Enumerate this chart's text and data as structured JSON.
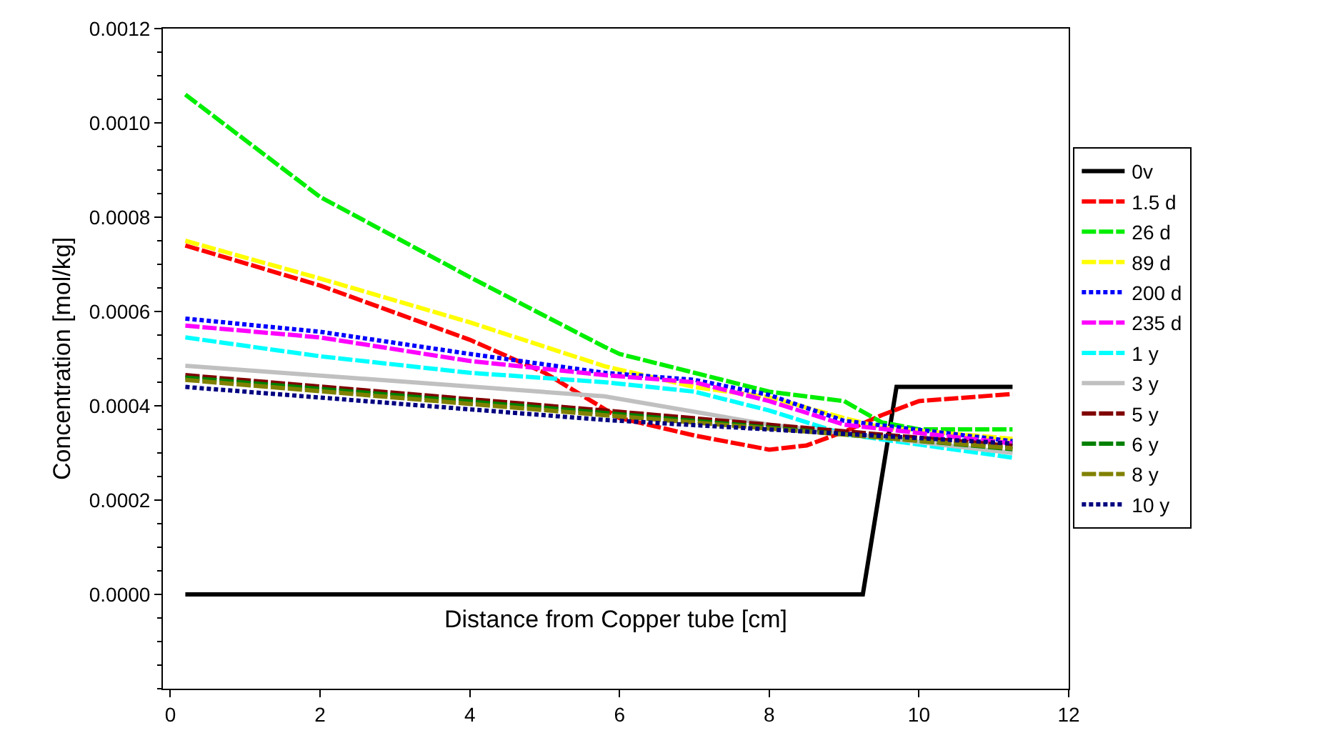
{
  "chart_data": {
    "type": "line",
    "xlabel": "Distance from Copper tube [cm]",
    "ylabel": "Concentration [mol/kg]",
    "xlim": [
      -0.1,
      12
    ],
    "xticks": [
      0,
      2,
      4,
      6,
      8,
      10,
      12
    ],
    "ylim": [
      -0.0002,
      0.0012
    ],
    "yticks": [
      {
        "value": 0,
        "label": "0.0000"
      },
      {
        "value": 0.0002,
        "label": "0.0002"
      },
      {
        "value": 0.0004,
        "label": "0.0004"
      },
      {
        "value": 0.0006,
        "label": "0.0006"
      },
      {
        "value": 0.0008,
        "label": "0.0008"
      },
      {
        "value": 0.001,
        "label": "0.0010"
      },
      {
        "value": 0.0012,
        "label": "0.0012"
      }
    ],
    "legend": "right",
    "marker": "none",
    "series": [
      {
        "name": "0v",
        "color": "#000000",
        "line_style": "solid",
        "x": [
          0.2,
          9.25,
          9.7,
          11.25
        ],
        "values": [
          0,
          0,
          0.00044,
          0.00044
        ]
      },
      {
        "name": "1.5 d",
        "color": "#ff0000",
        "line_style": "dashed",
        "x": [
          0.2,
          2,
          4,
          5,
          6,
          7,
          8,
          8.5,
          9,
          9.5,
          10,
          11.25
        ],
        "values": [
          0.00074,
          0.000655,
          0.00054,
          0.00047,
          0.000374,
          0.000337,
          0.000307,
          0.000316,
          0.000345,
          0.00038,
          0.00041,
          0.000425
        ]
      },
      {
        "name": "26 d",
        "color": "#00ee00",
        "line_style": "dashed",
        "x": [
          0.2,
          2,
          4,
          5.8,
          6,
          8,
          9,
          9.5,
          10,
          11.25
        ],
        "values": [
          0.00106,
          0.000843,
          0.000673,
          0.000525,
          0.00051,
          0.00043,
          0.00041,
          0.000365,
          0.00035,
          0.00035
        ]
      },
      {
        "name": "89 d",
        "color": "#ffff00",
        "line_style": "dashed",
        "x": [
          0.2,
          2,
          4,
          5.8,
          7,
          8,
          9,
          9.5,
          11.25
        ],
        "values": [
          0.00075,
          0.00067,
          0.000577,
          0.000484,
          0.00044,
          0.000418,
          0.000374,
          0.000354,
          0.00033
        ]
      },
      {
        "name": "200 d",
        "color": "#0000ff",
        "line_style": "dotted",
        "x": [
          0.2,
          2,
          4,
          5.8,
          7,
          8,
          9,
          11.25
        ],
        "values": [
          0.000585,
          0.000557,
          0.00051,
          0.00047,
          0.000455,
          0.000423,
          0.000368,
          0.000325
        ]
      },
      {
        "name": "235 d",
        "color": "#ff00ff",
        "line_style": "dashed",
        "x": [
          0.2,
          2,
          4,
          5.8,
          7,
          8,
          9,
          11.25
        ],
        "values": [
          0.00057,
          0.000545,
          0.000495,
          0.000465,
          0.00045,
          0.00041,
          0.00036,
          0.00032
        ]
      },
      {
        "name": "1 y",
        "color": "#00ffff",
        "line_style": "dashed",
        "x": [
          0.2,
          2,
          4,
          5.8,
          7,
          8,
          9,
          11.25
        ],
        "values": [
          0.000545,
          0.000505,
          0.00047,
          0.00045,
          0.00043,
          0.00039,
          0.00034,
          0.00029
        ]
      },
      {
        "name": "3 y",
        "color": "#c0c0c0",
        "line_style": "solid",
        "x": [
          0.2,
          5.8,
          8,
          11.25
        ],
        "values": [
          0.000485,
          0.00042,
          0.00036,
          0.0003
        ]
      },
      {
        "name": "5 y",
        "color": "#800000",
        "line_style": "dashed",
        "x": [
          0.2,
          5.8,
          11.25
        ],
        "values": [
          0.000465,
          0.00039,
          0.000315
        ]
      },
      {
        "name": "6 y",
        "color": "#008000",
        "line_style": "dashed",
        "x": [
          0.2,
          5.8,
          11.25
        ],
        "values": [
          0.00046,
          0.000385,
          0.000308
        ]
      },
      {
        "name": "8 y",
        "color": "#808000",
        "line_style": "dashed",
        "x": [
          0.2,
          5.8,
          11.25
        ],
        "values": [
          0.000455,
          0.00038,
          0.00031
        ]
      },
      {
        "name": "10 y",
        "color": "#000080",
        "line_style": "dotted",
        "x": [
          0.2,
          5.8,
          11.25
        ],
        "values": [
          0.00044,
          0.00037,
          0.00032
        ]
      }
    ]
  }
}
